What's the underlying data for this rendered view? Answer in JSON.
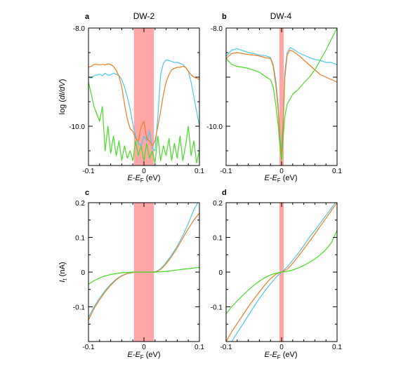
{
  "colors": {
    "cyan": "#4cc8e8",
    "orange": "#f07c1c",
    "green": "#44dd22",
    "band": "#ffa7a7"
  },
  "shared": {
    "xlabel_main": "E-E",
    "xlabel_sub": "F",
    "xlabel_unit": " (eV)",
    "ylabel_top": {
      "prefix": "log (",
      "italic": "dI/dV",
      "suffix": ")"
    },
    "ylabel_bottom": {
      "main": "I",
      "sub": "t",
      "suffix": " (nA)"
    }
  },
  "chart_data": [
    {
      "id": "a",
      "letter": "a",
      "title": "DW-2",
      "type": "line",
      "xlim": [
        -0.1,
        0.1
      ],
      "ylim": [
        -10.8,
        -8.0
      ],
      "xticks": [
        -0.1,
        0,
        0.1
      ],
      "xtick_labels": [
        "-0.1",
        "0",
        "0.1"
      ],
      "yticks": [
        -8.0,
        -10.0
      ],
      "ytick_labels": [
        "-8.0",
        "-10.0"
      ],
      "band": [
        -0.018,
        0.018
      ],
      "series": [
        {
          "color": "cyan",
          "x": [
            -0.1,
            -0.095,
            -0.09,
            -0.085,
            -0.08,
            -0.075,
            -0.07,
            -0.065,
            -0.06,
            -0.055,
            -0.05,
            -0.045,
            -0.04,
            -0.035,
            -0.03,
            -0.025,
            -0.02,
            -0.015,
            -0.01,
            -0.005,
            0,
            0.005,
            0.01,
            0.015,
            0.02,
            0.025,
            0.03,
            0.035,
            0.04,
            0.045,
            0.05,
            0.055,
            0.06,
            0.065,
            0.07,
            0.075,
            0.08,
            0.085,
            0.09,
            0.095,
            0.1
          ],
          "y": [
            -9.0,
            -9.02,
            -8.97,
            -8.96,
            -8.94,
            -8.97,
            -8.92,
            -8.96,
            -8.95,
            -8.92,
            -8.94,
            -8.97,
            -9.05,
            -9.2,
            -9.4,
            -9.65,
            -9.95,
            -10.2,
            -10.35,
            -10.4,
            -10.2,
            -10.3,
            -10.1,
            -10.45,
            -10.5,
            -9.8,
            -8.95,
            -8.72,
            -8.65,
            -8.66,
            -8.68,
            -8.7,
            -8.7,
            -8.72,
            -8.74,
            -8.8,
            -8.88,
            -9.1,
            -9.4,
            -9.7,
            -10.0
          ]
        },
        {
          "color": "orange",
          "x": [
            -0.1,
            -0.095,
            -0.09,
            -0.085,
            -0.08,
            -0.075,
            -0.07,
            -0.065,
            -0.06,
            -0.055,
            -0.05,
            -0.045,
            -0.04,
            -0.035,
            -0.03,
            -0.025,
            -0.02,
            -0.015,
            -0.01,
            -0.005,
            0,
            0.005,
            0.01,
            0.015,
            0.02,
            0.025,
            0.03,
            0.035,
            0.04,
            0.045,
            0.05,
            0.055,
            0.06,
            0.065,
            0.07,
            0.075,
            0.08,
            0.085,
            0.09,
            0.095,
            0.1
          ],
          "y": [
            -8.8,
            -8.78,
            -8.74,
            -8.74,
            -8.75,
            -8.74,
            -8.75,
            -8.73,
            -8.74,
            -8.78,
            -8.86,
            -8.98,
            -9.2,
            -9.55,
            -9.85,
            -10.05,
            -10.1,
            -10.25,
            -10.3,
            -10.0,
            -9.9,
            -10.25,
            -10.3,
            -10.4,
            -10.3,
            -10.0,
            -9.7,
            -9.35,
            -9.1,
            -8.95,
            -8.85,
            -8.82,
            -8.8,
            -8.8,
            -8.78,
            -8.8,
            -8.88,
            -8.95,
            -9.0,
            -9.02,
            -9.05
          ]
        },
        {
          "color": "green",
          "x": [
            -0.1,
            -0.095,
            -0.09,
            -0.085,
            -0.08,
            -0.075,
            -0.07,
            -0.065,
            -0.06,
            -0.055,
            -0.05,
            -0.045,
            -0.04,
            -0.035,
            -0.03,
            -0.025,
            -0.02,
            -0.015,
            -0.01,
            -0.005,
            0,
            0.005,
            0.01,
            0.015,
            0.02,
            0.025,
            0.03,
            0.035,
            0.04,
            0.045,
            0.05,
            0.055,
            0.06,
            0.065,
            0.07,
            0.075,
            0.08,
            0.085,
            0.09,
            0.095,
            0.1
          ],
          "y": [
            -9.1,
            -9.35,
            -9.6,
            -9.75,
            -9.9,
            -9.6,
            -10.5,
            -10.0,
            -10.55,
            -10.2,
            -10.6,
            -10.3,
            -10.7,
            -10.4,
            -10.65,
            -10.5,
            -10.7,
            -10.3,
            -10.6,
            -10.4,
            -10.7,
            -10.35,
            -10.65,
            -10.5,
            -10.75,
            -10.2,
            -10.7,
            -10.4,
            -10.6,
            -10.25,
            -10.7,
            -10.35,
            -10.65,
            -10.2,
            -10.7,
            -10.4,
            -10.0,
            -10.6,
            -10.3,
            -10.75,
            -10.5
          ]
        }
      ]
    },
    {
      "id": "b",
      "letter": "b",
      "title": "DW-4",
      "type": "line",
      "xlim": [
        -0.1,
        0.1
      ],
      "ylim": [
        -10.8,
        -8.0
      ],
      "xticks": [
        -0.1,
        0,
        0.1
      ],
      "xtick_labels": [
        "-0.1",
        "0",
        "0.1"
      ],
      "yticks": [
        -8.0,
        -10.0
      ],
      "ytick_labels": [
        "-8.0",
        "-10.0"
      ],
      "band": [
        -0.004,
        0.004
      ],
      "series": [
        {
          "color": "cyan",
          "x": [
            -0.1,
            -0.09,
            -0.08,
            -0.07,
            -0.06,
            -0.05,
            -0.04,
            -0.03,
            -0.02,
            -0.015,
            -0.01,
            -0.006,
            -0.003,
            0,
            0.003,
            0.006,
            0.01,
            0.015,
            0.02,
            0.03,
            0.04,
            0.05,
            0.06,
            0.07,
            0.08,
            0.09,
            0.1
          ],
          "y": [
            -8.58,
            -8.45,
            -8.42,
            -8.46,
            -8.5,
            -8.52,
            -8.55,
            -8.56,
            -8.6,
            -8.75,
            -9.1,
            -9.6,
            -10.2,
            -10.5,
            -9.8,
            -8.9,
            -8.5,
            -8.4,
            -8.42,
            -8.5,
            -8.55,
            -8.6,
            -8.64,
            -8.66,
            -8.7,
            -8.7,
            -8.75
          ]
        },
        {
          "color": "orange",
          "x": [
            -0.1,
            -0.09,
            -0.08,
            -0.07,
            -0.06,
            -0.05,
            -0.04,
            -0.03,
            -0.02,
            -0.015,
            -0.01,
            -0.006,
            -0.003,
            0,
            0.003,
            0.006,
            0.01,
            0.015,
            0.02,
            0.03,
            0.04,
            0.05,
            0.06,
            0.07,
            0.08,
            0.09,
            0.1
          ],
          "y": [
            -8.62,
            -8.52,
            -8.5,
            -8.52,
            -8.54,
            -8.55,
            -8.57,
            -8.6,
            -8.62,
            -8.78,
            -9.2,
            -9.7,
            -10.3,
            -10.6,
            -9.9,
            -9.0,
            -8.55,
            -8.45,
            -8.47,
            -8.55,
            -8.65,
            -8.75,
            -8.85,
            -8.95,
            -9.0,
            -9.05,
            -9.1
          ]
        },
        {
          "color": "green",
          "x": [
            -0.1,
            -0.09,
            -0.08,
            -0.07,
            -0.06,
            -0.05,
            -0.04,
            -0.03,
            -0.02,
            -0.015,
            -0.01,
            -0.006,
            -0.003,
            0,
            0.003,
            0.006,
            0.01,
            0.015,
            0.02,
            0.025,
            0.03,
            0.04,
            0.05,
            0.06,
            0.07,
            0.08,
            0.09,
            0.1
          ],
          "y": [
            -8.62,
            -8.74,
            -8.78,
            -8.8,
            -8.82,
            -8.86,
            -8.9,
            -8.98,
            -9.05,
            -9.2,
            -9.6,
            -10.0,
            -10.4,
            -10.7,
            -10.2,
            -9.8,
            -9.55,
            -9.45,
            -9.35,
            -9.3,
            -9.25,
            -9.12,
            -9.0,
            -8.85,
            -8.65,
            -8.45,
            -8.22,
            -8.0
          ]
        }
      ]
    },
    {
      "id": "c",
      "letter": "c",
      "title": "",
      "type": "line",
      "xlim": [
        -0.1,
        0.1
      ],
      "ylim": [
        -0.2,
        0.2
      ],
      "xticks": [
        -0.1,
        0,
        0.1
      ],
      "xtick_labels": [
        "-0.1",
        "0",
        "0.1"
      ],
      "yticks": [
        0.2,
        0.1,
        0,
        -0.1
      ],
      "ytick_labels": [
        "0.2",
        "0.1",
        "0",
        "-0.1"
      ],
      "band": [
        -0.018,
        0.018
      ],
      "series": [
        {
          "color": "cyan",
          "x": [
            -0.1,
            -0.09,
            -0.08,
            -0.07,
            -0.06,
            -0.05,
            -0.04,
            -0.03,
            -0.02,
            -0.015,
            0,
            0.015,
            0.02,
            0.025,
            0.03,
            0.035,
            0.04,
            0.05,
            0.06,
            0.07,
            0.08,
            0.09,
            0.097
          ],
          "y": [
            -0.13,
            -0.1,
            -0.075,
            -0.053,
            -0.035,
            -0.02,
            -0.01,
            -0.004,
            -0.001,
            0,
            0,
            0,
            0.001,
            0.004,
            0.01,
            0.018,
            0.028,
            0.05,
            0.075,
            0.105,
            0.14,
            0.18,
            0.2
          ]
        },
        {
          "color": "orange",
          "x": [
            -0.1,
            -0.09,
            -0.08,
            -0.07,
            -0.06,
            -0.05,
            -0.04,
            -0.03,
            -0.02,
            -0.015,
            0,
            0.015,
            0.02,
            0.025,
            0.03,
            0.035,
            0.04,
            0.05,
            0.06,
            0.07,
            0.08,
            0.09,
            0.1
          ],
          "y": [
            -0.138,
            -0.105,
            -0.08,
            -0.057,
            -0.038,
            -0.022,
            -0.011,
            -0.004,
            -0.001,
            0,
            0,
            0,
            0.001,
            0.003,
            0.008,
            0.015,
            0.024,
            0.045,
            0.07,
            0.098,
            0.125,
            0.15,
            0.17
          ]
        },
        {
          "color": "green",
          "x": [
            -0.1,
            -0.09,
            -0.08,
            -0.07,
            -0.06,
            -0.05,
            -0.04,
            -0.03,
            -0.02,
            -0.01,
            0,
            0.01,
            0.02,
            0.03,
            0.04,
            0.05,
            0.06,
            0.07,
            0.08,
            0.09,
            0.1
          ],
          "y": [
            -0.035,
            -0.025,
            -0.017,
            -0.011,
            -0.007,
            -0.004,
            -0.002,
            -0.001,
            0,
            0,
            0,
            0,
            0,
            0.001,
            0.002,
            0.004,
            0.006,
            0.008,
            0.01,
            0.012,
            0.014
          ]
        }
      ]
    },
    {
      "id": "d",
      "letter": "d",
      "title": "",
      "type": "line",
      "xlim": [
        -0.1,
        0.1
      ],
      "ylim": [
        -0.2,
        0.2
      ],
      "xticks": [
        -0.1,
        0,
        0.1
      ],
      "xtick_labels": [
        "-0.1",
        "0",
        "0.1"
      ],
      "yticks": [
        0.2,
        0.1,
        0,
        -0.1
      ],
      "ytick_labels": [
        "0.2",
        "0.1",
        "0",
        "-0.1"
      ],
      "band": [
        -0.004,
        0.004
      ],
      "series": [
        {
          "color": "cyan",
          "x": [
            -0.09,
            -0.08,
            -0.07,
            -0.06,
            -0.05,
            -0.04,
            -0.03,
            -0.02,
            -0.01,
            0,
            0.01,
            0.02,
            0.03,
            0.04,
            0.05,
            0.06,
            0.07,
            0.08,
            0.09,
            0.097
          ],
          "y": [
            -0.2,
            -0.175,
            -0.15,
            -0.125,
            -0.1,
            -0.076,
            -0.054,
            -0.034,
            -0.015,
            0,
            0.015,
            0.034,
            0.054,
            0.076,
            0.1,
            0.12,
            0.142,
            0.163,
            0.185,
            0.2
          ]
        },
        {
          "color": "orange",
          "x": [
            -0.1,
            -0.09,
            -0.08,
            -0.07,
            -0.06,
            -0.05,
            -0.04,
            -0.03,
            -0.02,
            -0.01,
            0,
            0.01,
            0.02,
            0.03,
            0.04,
            0.05,
            0.06,
            0.07,
            0.08,
            0.09,
            0.1
          ],
          "y": [
            -0.2,
            -0.172,
            -0.148,
            -0.124,
            -0.1,
            -0.078,
            -0.057,
            -0.037,
            -0.019,
            -0.006,
            0,
            0.008,
            0.025,
            0.045,
            0.066,
            0.088,
            0.11,
            0.133,
            0.155,
            0.178,
            0.2
          ]
        },
        {
          "color": "green",
          "x": [
            -0.1,
            -0.09,
            -0.08,
            -0.07,
            -0.06,
            -0.05,
            -0.04,
            -0.03,
            -0.02,
            -0.01,
            0,
            0.01,
            0.02,
            0.03,
            0.04,
            0.05,
            0.06,
            0.07,
            0.08,
            0.09,
            0.1
          ],
          "y": [
            -0.12,
            -0.1,
            -0.083,
            -0.067,
            -0.052,
            -0.038,
            -0.026,
            -0.016,
            -0.008,
            -0.003,
            0,
            0.002,
            0.006,
            0.012,
            0.019,
            0.028,
            0.038,
            0.05,
            0.065,
            0.085,
            0.12
          ]
        }
      ]
    }
  ]
}
